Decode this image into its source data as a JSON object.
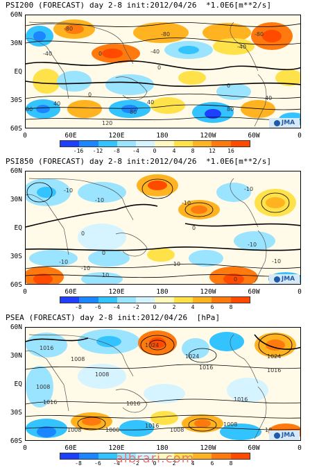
{
  "panels": [
    {
      "title": "PSI200 (FORECAST) day 2-8 init:2012/04/26  *1.0E6[m**2/s]",
      "lat_labels": [
        "60N",
        "30N",
        "EQ",
        "30S",
        "60S"
      ],
      "lon_labels": [
        "0",
        "60E",
        "120E",
        "180",
        "120W",
        "60W",
        "0"
      ],
      "colorbar_ticks": [
        "-16",
        "-12",
        "-8",
        "-4",
        "0",
        "4",
        "8",
        "12",
        "16"
      ],
      "contour_labels": [
        "-80",
        "-40",
        "-80",
        "-80",
        "-40",
        "-40",
        "0",
        "0",
        "0",
        "40",
        "0",
        "40",
        "40",
        "80",
        "80",
        "120",
        "80"
      ]
    },
    {
      "title": "PSI850 (FORECAST) day 2-8 init:2012/04/26  *1.0E6[m**2/s]",
      "lat_labels": [
        "60N",
        "30N",
        "EQ",
        "30S",
        "60S"
      ],
      "lon_labels": [
        "0",
        "60E",
        "120E",
        "180",
        "120W",
        "60W",
        "0"
      ],
      "colorbar_ticks": [
        "-8",
        "-6",
        "-4",
        "-2",
        "0",
        "2",
        "4",
        "6",
        "8"
      ],
      "contour_labels": [
        "-10",
        "-10",
        "-10",
        "-10",
        "0",
        "0",
        "0",
        "0",
        "-10",
        "-10",
        "10",
        "-10",
        "-10",
        "-10"
      ]
    },
    {
      "title": "PSEA (FORECAST) day 2-8 init:2012/04/26  [hPa]",
      "lat_labels": [
        "60N",
        "30N",
        "EQ",
        "30S",
        "60S"
      ],
      "lon_labels": [
        "0",
        "60E",
        "120E",
        "180",
        "120W",
        "60W",
        "0"
      ],
      "colorbar_ticks": [
        "-8",
        "-6",
        "-4",
        "-2",
        "0",
        "2",
        "4",
        "6",
        "8"
      ],
      "contour_labels": [
        "1016",
        "1024",
        "1024",
        "1024",
        "1008",
        "1008",
        "1016",
        "1016",
        "1008",
        "1016",
        "1016",
        "1008",
        "1000",
        "1016",
        "1008",
        "1016",
        "1008",
        "10"
      ]
    }
  ],
  "logo_text": "JMA",
  "watermark": "albrari.com",
  "colors": {
    "negative": [
      "#1f3fff",
      "#1c86ff",
      "#33c3ff",
      "#9be4ff",
      "#d6f4ff"
    ],
    "positive": [
      "#fff9c0",
      "#ffe24a",
      "#ffb321",
      "#ff7a0e",
      "#ff4a00"
    ],
    "neutral": "#fffbe8",
    "land": "#555555",
    "contour": "#000000"
  }
}
